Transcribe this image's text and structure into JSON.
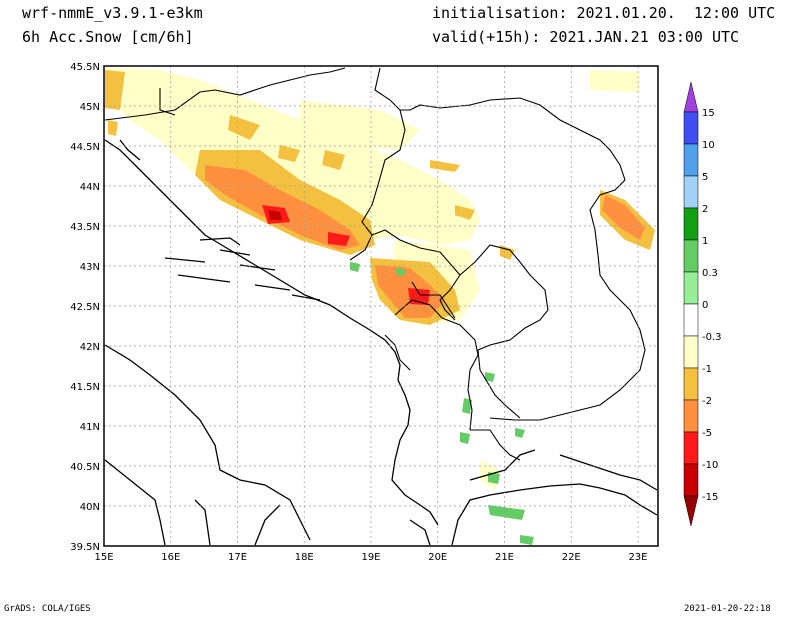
{
  "header": {
    "model": "wrf-nmmE_v3.9.1-e3km",
    "field": "6h Acc.Snow [cm/6h]",
    "init": "initialisation: 2021.01.20.  12:00 UTC",
    "valid": "valid(+15h): 2021.JAN.21 03:00 UTC"
  },
  "axes": {
    "lat_labels": [
      "45.5N",
      "45N",
      "44.5N",
      "44N",
      "43.5N",
      "43N",
      "42.5N",
      "42N",
      "41.5N",
      "41N",
      "40.5N",
      "40N",
      "39.5N"
    ],
    "lon_labels": [
      "15E",
      "16E",
      "17E",
      "18E",
      "19E",
      "20E",
      "21E",
      "22E",
      "23E"
    ]
  },
  "colorbar": {
    "labels": [
      "15",
      "10",
      "5",
      "2",
      "1",
      "0.3",
      "0",
      "-0.3",
      "-1",
      "-2",
      "-5",
      "-10",
      "-15"
    ],
    "colors": [
      "#a040e0",
      "#4050f0",
      "#50a0ec",
      "#a0d2f8",
      "#12a012",
      "#64cc64",
      "#96ee96",
      "#ffffff",
      "#ffffc8",
      "#f4c040",
      "#ff9040",
      "#ff1a1a",
      "#c80000",
      "#960000"
    ]
  },
  "footer": {
    "credit": "GrADS: COLA/IGES",
    "timestamp": "2021-01-20-22:18"
  }
}
